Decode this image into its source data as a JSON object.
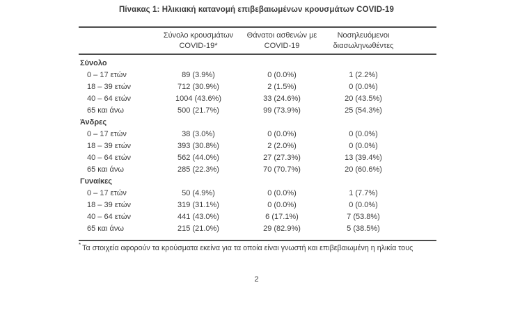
{
  "page": {
    "title": "Πίνακας 1: Ηλικιακή κατανομή επιβεβαιωμένων κρουσμάτων COVID-19",
    "page_number": "2"
  },
  "footnote": {
    "marker": "*",
    "text": "Τα στοιχεία αφορούν τα κρούσματα εκείνα για τα οποία είναι γνωστή και επιβεβαιωμένη η ηλικία τους"
  },
  "table": {
    "headers": [
      {
        "line1": "Σύνολο κρουσμάτων",
        "line2": "COVID-19*"
      },
      {
        "line1": "Θάνατοι ασθενών με",
        "line2": "COVID-19"
      },
      {
        "line1": "Νοσηλευόμενοι",
        "line2": "διασωληνωθέντες"
      }
    ],
    "sections": [
      {
        "label": "Σύνολο",
        "rows": [
          {
            "label": "0 – 17 ετών",
            "cases": "89 (3.9%)",
            "deaths": "0 (0.0%)",
            "intubated": "1 (2.2%)"
          },
          {
            "label": "18 – 39 ετών",
            "cases": "712 (30.9%)",
            "deaths": "2 (1.5%)",
            "intubated": "0 (0.0%)"
          },
          {
            "label": "40 – 64 ετών",
            "cases": "1004 (43.6%)",
            "deaths": "33 (24.6%)",
            "intubated": "20 (43.5%)"
          },
          {
            "label": "65 και άνω",
            "cases": "500 (21.7%)",
            "deaths": "99 (73.9%)",
            "intubated": "25 (54.3%)"
          }
        ]
      },
      {
        "label": "Άνδρες",
        "rows": [
          {
            "label": "0 – 17 ετών",
            "cases": "38 (3.0%)",
            "deaths": "0 (0.0%)",
            "intubated": "0 (0.0%)"
          },
          {
            "label": "18 – 39 ετών",
            "cases": "393 (30.8%)",
            "deaths": "2 (2.0%)",
            "intubated": "0 (0.0%)"
          },
          {
            "label": "40 – 64 ετών",
            "cases": "562 (44.0%)",
            "deaths": "27 (27.3%)",
            "intubated": "13 (39.4%)"
          },
          {
            "label": "65 και άνω",
            "cases": "285 (22.3%)",
            "deaths": "70 (70.7%)",
            "intubated": "20 (60.6%)"
          }
        ]
      },
      {
        "label": "Γυναίκες",
        "rows": [
          {
            "label": "0 – 17 ετών",
            "cases": "50 (4.9%)",
            "deaths": "0 (0.0%)",
            "intubated": "1 (7.7%)"
          },
          {
            "label": "18 – 39 ετών",
            "cases": "319 (31.1%)",
            "deaths": "0 (0.0%)",
            "intubated": "0 (0.0%)"
          },
          {
            "label": "40 – 64 ετών",
            "cases": "441 (43.0%)",
            "deaths": "6 (17.1%)",
            "intubated": "7 (53.8%)"
          },
          {
            "label": "65 και άνω",
            "cases": "215 (21.0%)",
            "deaths": "29 (82.9%)",
            "intubated": "5 (38.5%)"
          }
        ]
      }
    ]
  },
  "colors": {
    "text": "#3c3c3c",
    "rule": "#4b4b4b",
    "background": "#ffffff"
  }
}
